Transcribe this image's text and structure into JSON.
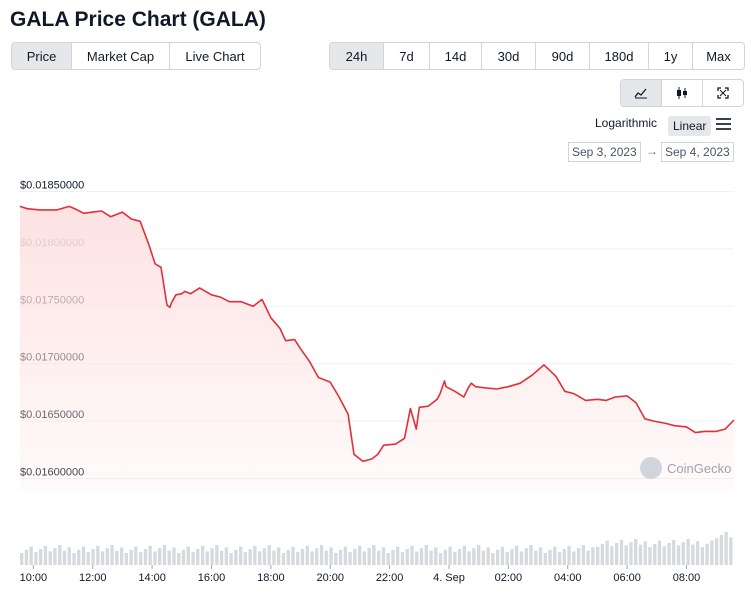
{
  "title": "GALA Price Chart (GALA)",
  "type_tabs": [
    {
      "label": "Price",
      "active": true
    },
    {
      "label": "Market Cap",
      "active": false
    },
    {
      "label": "Live Chart",
      "active": false
    }
  ],
  "range_tabs": [
    {
      "label": "24h",
      "active": true
    },
    {
      "label": "7d",
      "active": false
    },
    {
      "label": "14d",
      "active": false
    },
    {
      "label": "30d",
      "active": false
    },
    {
      "label": "90d",
      "active": false
    },
    {
      "label": "180d",
      "active": false
    },
    {
      "label": "1y",
      "active": false
    },
    {
      "label": "Max",
      "active": false
    }
  ],
  "view_icons": [
    "line-chart-icon",
    "candlestick-icon",
    "fullscreen-icon"
  ],
  "scale": {
    "log_label": "Logarithmic",
    "linear_label": "Linear",
    "selected": "Linear"
  },
  "date_range": {
    "from": "Sep 3, 2023",
    "arrow": "→",
    "to": "Sep 4, 2023"
  },
  "colors": {
    "line": "#e0303a",
    "area": "#fde2e2",
    "volume": "#d6d9de",
    "grid": "#eef0f2"
  },
  "chart_data": {
    "type": "area",
    "ylabel": "",
    "ylim": [
      0.0159,
      0.0186
    ],
    "yticks": [
      "$0.01850000",
      "$0.01800000",
      "$0.01750000",
      "$0.01700000",
      "$0.01650000",
      "$0.01600000"
    ],
    "ytick_values": [
      0.0185,
      0.018,
      0.0175,
      0.017,
      0.0165,
      0.016
    ],
    "xticks": [
      "10:00",
      "12:00",
      "14:00",
      "16:00",
      "18:00",
      "20:00",
      "22:00",
      "4. Sep",
      "02:00",
      "04:00",
      "06:00",
      "08:00"
    ],
    "xtick_hours": [
      0,
      2,
      4,
      6,
      8,
      10,
      12,
      14,
      16,
      18,
      20,
      22
    ],
    "xlim_hours": [
      -0.45,
      23.6
    ],
    "watermark": "CoinGecko",
    "series": [
      {
        "x_hours": [
          -0.45,
          -0.2,
          0.2,
          0.8,
          1.2,
          1.4,
          1.7,
          2.0,
          2.3,
          2.6,
          3.0,
          3.3,
          3.6,
          3.9,
          4.1,
          4.3,
          4.5,
          4.6,
          4.65,
          4.8,
          5.0,
          5.1,
          5.3,
          5.6,
          6.0,
          6.3,
          6.6,
          7.0,
          7.4,
          7.7,
          8.0,
          8.3,
          8.5,
          8.8,
          9.0,
          9.3,
          9.6,
          10.0,
          10.3,
          10.6,
          10.8,
          11.1,
          11.4,
          11.6,
          11.8,
          12.2,
          12.5,
          12.7,
          12.9,
          13.0,
          13.3,
          13.6,
          13.7,
          13.85,
          13.9,
          14.2,
          14.5,
          14.65,
          14.75,
          14.9,
          15.2,
          15.6,
          16.0,
          16.4,
          16.8,
          17.2,
          17.6,
          17.9,
          18.2,
          18.6,
          19.0,
          19.3,
          19.6,
          20.0,
          20.3,
          20.6,
          20.9,
          21.3,
          21.6,
          22.0,
          22.3,
          22.6,
          23.0,
          23.3,
          23.6
        ],
        "values": [
          0.01837,
          0.01835,
          0.01834,
          0.01834,
          0.01837,
          0.01835,
          0.01831,
          0.01832,
          0.01833,
          0.01828,
          0.01832,
          0.01826,
          0.01824,
          0.01803,
          0.01787,
          0.01784,
          0.01751,
          0.01749,
          0.01753,
          0.0176,
          0.01761,
          0.01763,
          0.01761,
          0.01766,
          0.0176,
          0.01758,
          0.01754,
          0.01754,
          0.0175,
          0.01756,
          0.0174,
          0.01731,
          0.0172,
          0.01721,
          0.01713,
          0.01702,
          0.01688,
          0.01684,
          0.01671,
          0.01656,
          0.01621,
          0.01615,
          0.01617,
          0.01621,
          0.01629,
          0.0163,
          0.01635,
          0.01661,
          0.01643,
          0.01662,
          0.01663,
          0.01669,
          0.01674,
          0.01685,
          0.0168,
          0.01676,
          0.01671,
          0.01679,
          0.01683,
          0.0168,
          0.01679,
          0.01678,
          0.0168,
          0.01683,
          0.0169,
          0.01699,
          0.01689,
          0.01676,
          0.01674,
          0.01668,
          0.01669,
          0.01668,
          0.01671,
          0.01672,
          0.01666,
          0.01652,
          0.0165,
          0.01648,
          0.01646,
          0.01645,
          0.0164,
          0.01641,
          0.01641,
          0.01643,
          0.01651
        ]
      }
    ]
  }
}
